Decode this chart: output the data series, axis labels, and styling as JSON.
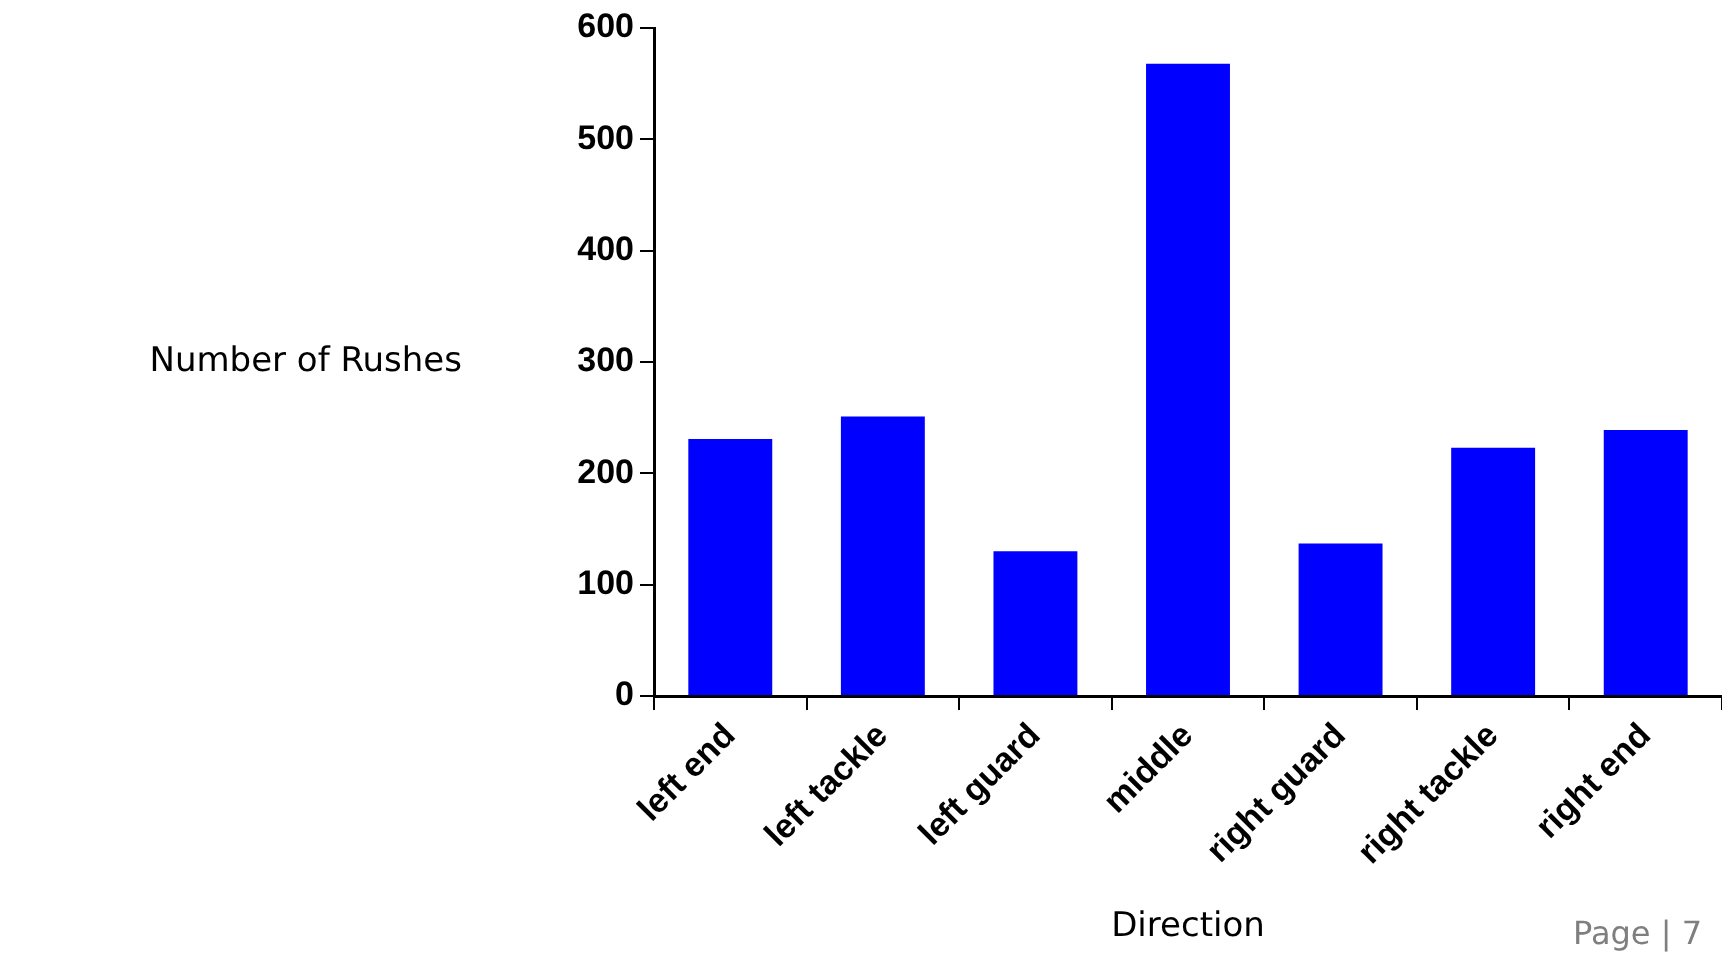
{
  "chart_data": {
    "type": "bar",
    "categories": [
      "left end",
      "left tackle",
      "left guard",
      "middle",
      "right guard",
      "right tackle",
      "right end"
    ],
    "values": [
      231,
      251,
      130,
      568,
      137,
      223,
      239
    ],
    "color": "#0000ff",
    "xlabel": "Direction",
    "ylabel": "Number of Rushes",
    "ylim": [
      0,
      600
    ],
    "yticks": [
      0,
      100,
      200,
      300,
      400,
      500,
      600
    ],
    "grid": false,
    "legend": false,
    "annotations": [
      "Page | 7"
    ]
  }
}
